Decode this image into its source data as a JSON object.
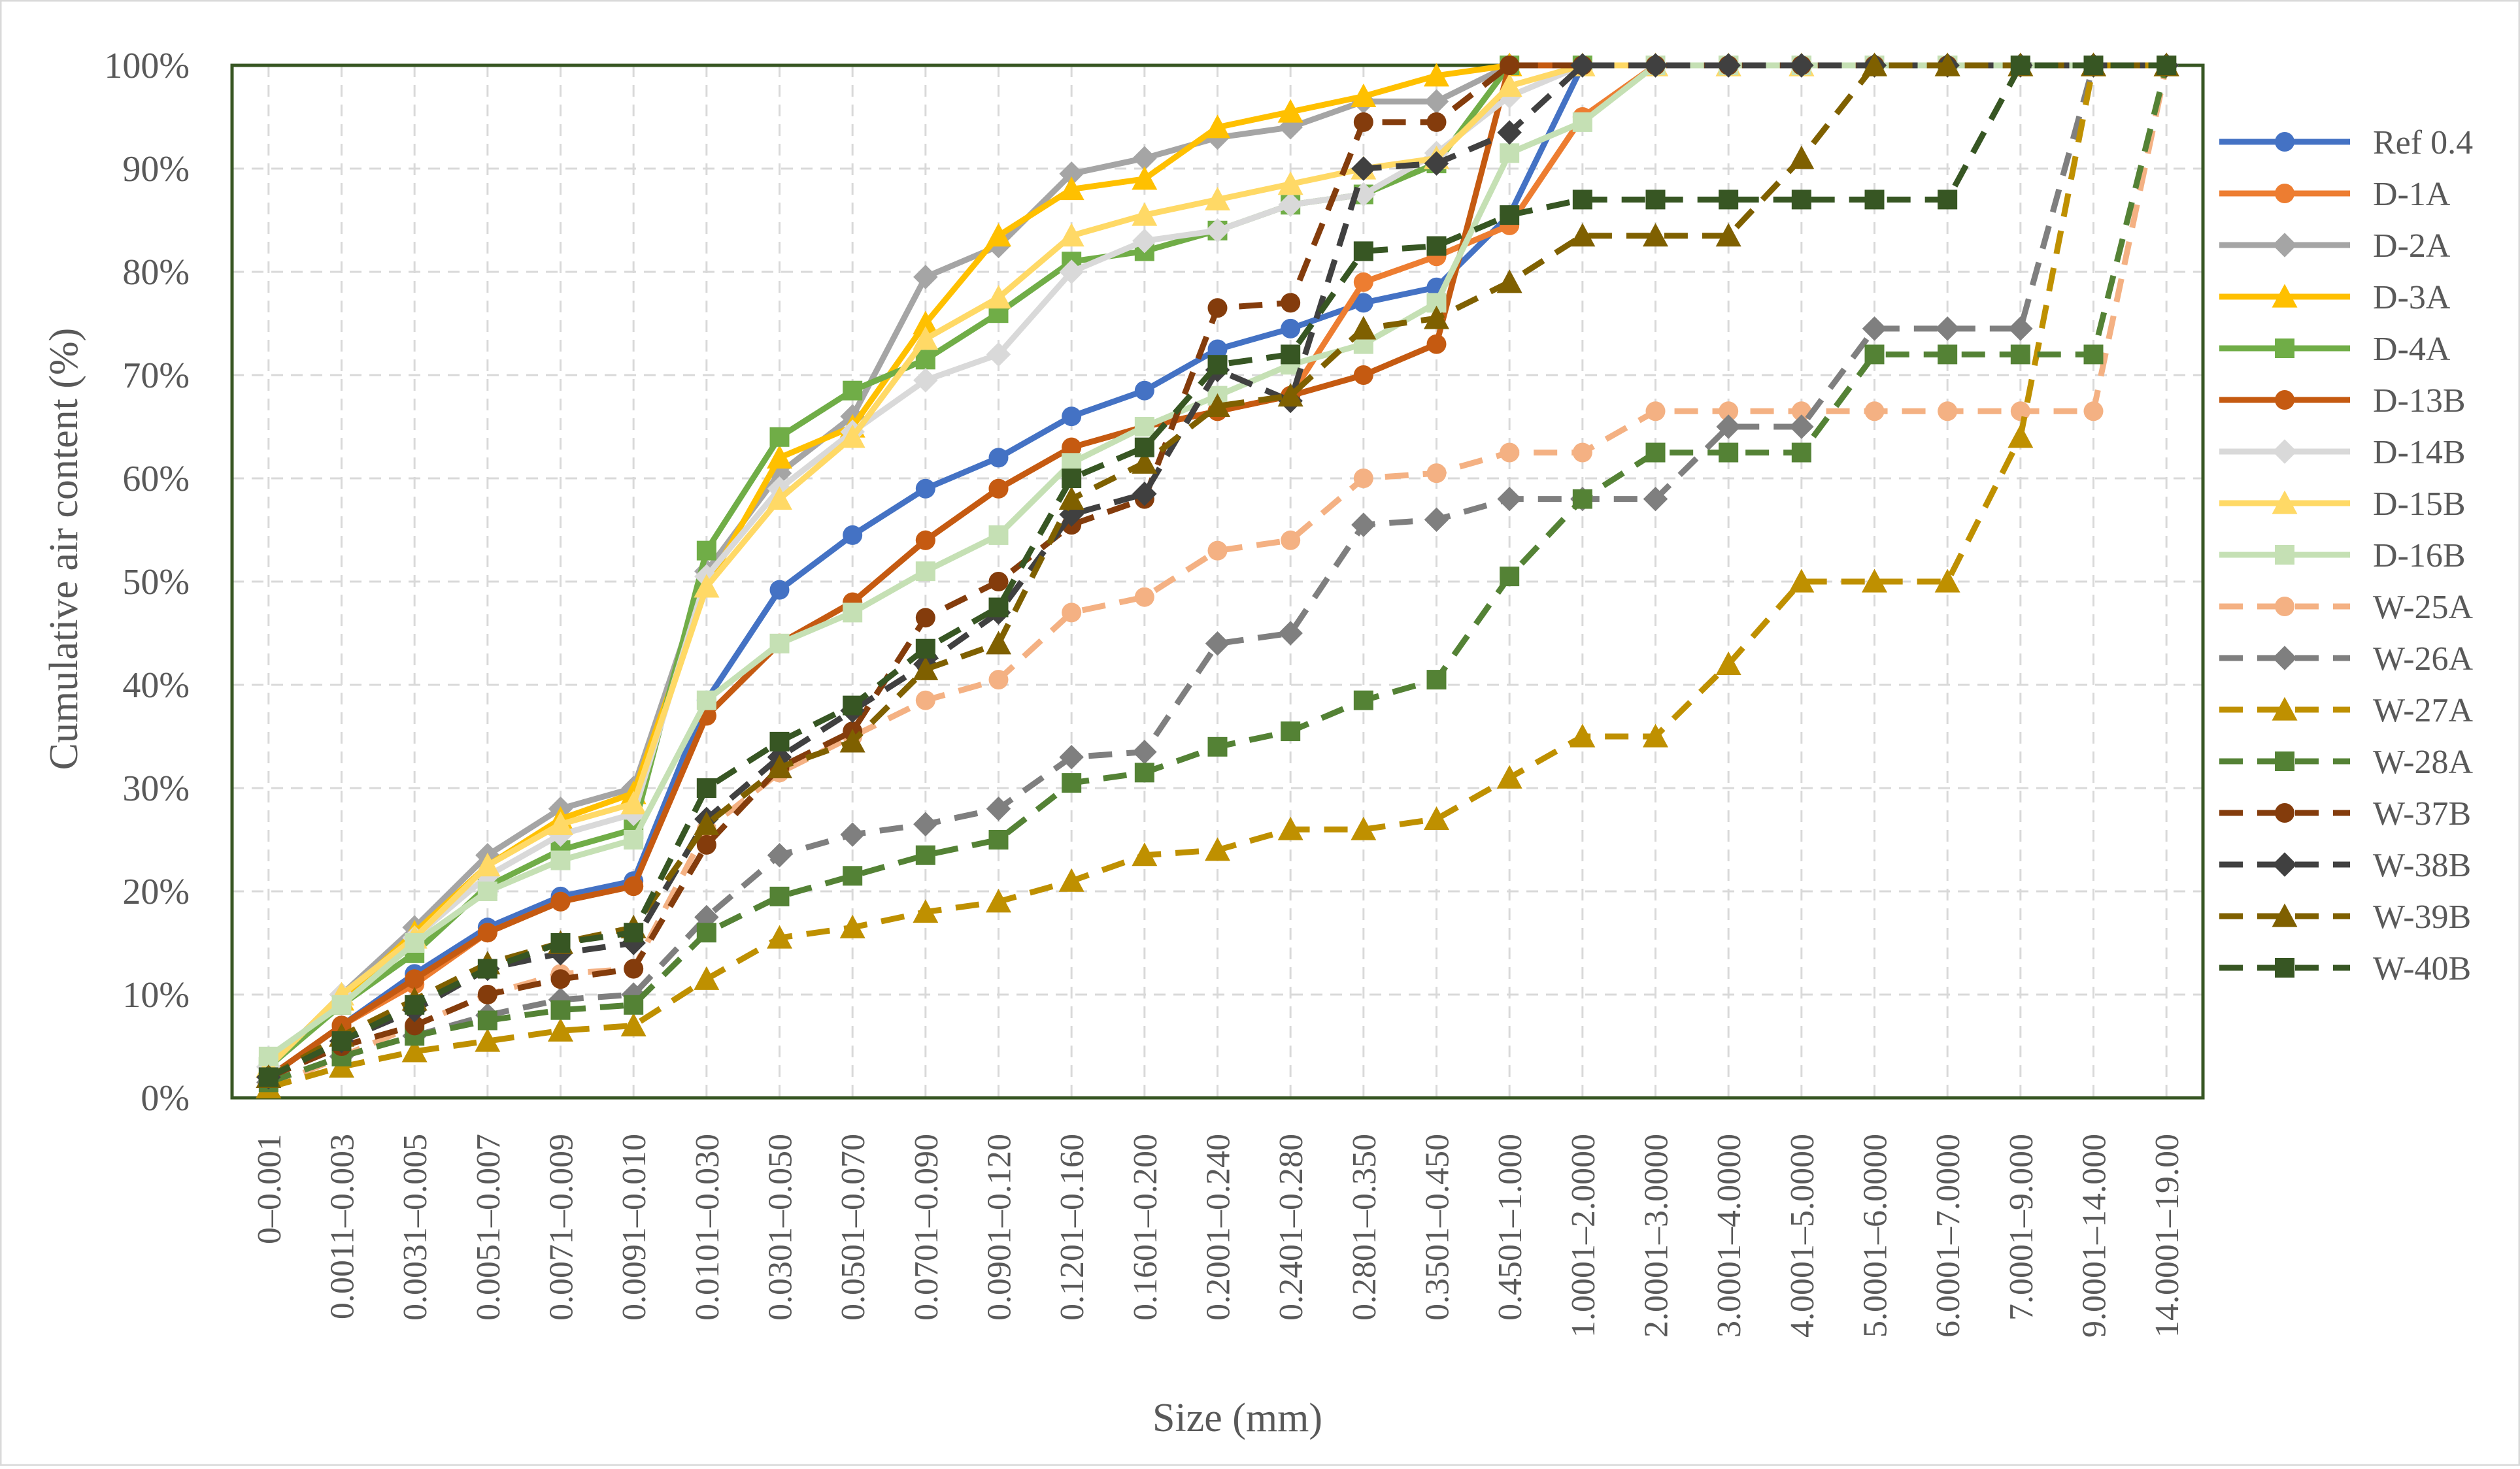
{
  "chart_data": {
    "type": "line",
    "title": "",
    "xlabel": "Size (mm)",
    "ylabel": "Cumulative air content (%)",
    "ylim": [
      0,
      100
    ],
    "y_ticks": [
      "0%",
      "10%",
      "20%",
      "30%",
      "40%",
      "50%",
      "60%",
      "70%",
      "80%",
      "90%",
      "100%"
    ],
    "grid": "dashed both axes",
    "legend_position": "right",
    "categories": [
      "0–0.001",
      "0.0011–0.003",
      "0.0031–0.005",
      "0.0051–0.007",
      "0.0071–0.009",
      "0.0091–0.010",
      "0.0101–0.030",
      "0.0301–0.050",
      "0.0501–0.070",
      "0.0701–0.090",
      "0.0901–0.120",
      "0.1201–0.160",
      "0.1601–0.200",
      "0.2001–0.240",
      "0.2401–0.280",
      "0.2801–0.350",
      "0.3501–0.450",
      "0.4501–1.000",
      "1.0001–2.0000",
      "2.0001–3.0000",
      "3.0001–4.0000",
      "4.0001–5.0000",
      "5.0001–6.0000",
      "6.0001–7.0000",
      "7.0001–9.000",
      "9.0001–14.000",
      "14.0001–19.00"
    ],
    "series": [
      {
        "name": "Ref 0.4",
        "color": "#4472C4",
        "dash": false,
        "marker": "circle",
        "values": [
          2,
          7,
          12,
          16.5,
          19.5,
          21,
          38.5,
          49.2,
          54.5,
          59,
          62,
          66,
          68.5,
          72.5,
          74.5,
          77,
          78.5,
          85.5,
          100,
          100,
          100,
          100,
          100,
          100,
          100,
          100,
          100
        ]
      },
      {
        "name": "D-1A",
        "color": "#ED7D31",
        "dash": false,
        "marker": "circle",
        "values": [
          2,
          7,
          11,
          16,
          19,
          20.5,
          37,
          44,
          48,
          54,
          59,
          63,
          65,
          66.5,
          68,
          79,
          81.5,
          84.5,
          95,
          100,
          100,
          100,
          100,
          100,
          100,
          100,
          100
        ]
      },
      {
        "name": "D-2A",
        "color": "#A5A5A5",
        "dash": false,
        "marker": "diamond",
        "values": [
          3,
          10,
          16.5,
          23.5,
          28,
          30,
          51,
          60.5,
          66,
          79.5,
          82.5,
          89.5,
          91,
          93,
          94,
          96.5,
          96.5,
          100,
          100,
          100,
          100,
          100,
          100,
          100,
          100,
          100,
          100
        ]
      },
      {
        "name": "D-3A",
        "color": "#FFC000",
        "dash": false,
        "marker": "triangle",
        "values": [
          3,
          9.5,
          16,
          22.5,
          27,
          29.5,
          49.5,
          62,
          65,
          75,
          83.5,
          88,
          89,
          94,
          95.5,
          97,
          99,
          100,
          100,
          100,
          100,
          100,
          100,
          100,
          100,
          100,
          100
        ]
      },
      {
        "name": "D-4A",
        "color": "#70AD47",
        "dash": false,
        "marker": "square",
        "values": [
          3,
          9,
          14,
          20.5,
          24,
          26,
          53,
          64,
          68.5,
          71.5,
          76,
          81,
          82,
          84,
          86.5,
          87.5,
          90.5,
          100,
          100,
          100,
          100,
          100,
          100,
          100,
          100,
          100,
          100
        ]
      },
      {
        "name": "D-13B",
        "color": "#C55A11",
        "dash": false,
        "marker": "circle",
        "values": [
          2,
          7,
          11.5,
          16,
          19,
          20.5,
          37,
          44,
          48,
          54,
          59,
          63,
          65,
          66.5,
          68,
          70,
          73,
          100,
          100,
          100,
          100,
          100,
          100,
          100,
          100,
          100,
          100
        ]
      },
      {
        "name": "D-14B",
        "color": "#D9D9D9",
        "dash": false,
        "marker": "diamond",
        "values": [
          3,
          10,
          15.5,
          21.5,
          25.5,
          27.5,
          50.5,
          59,
          64.5,
          69.5,
          72,
          80,
          83,
          84,
          86.5,
          87.5,
          91.5,
          97,
          100,
          100,
          100,
          100,
          100,
          100,
          100,
          100,
          100
        ]
      },
      {
        "name": "D-15B",
        "color": "#FFD966",
        "dash": false,
        "marker": "triangle",
        "values": [
          3,
          10,
          15.5,
          22.5,
          26.5,
          28.5,
          49.5,
          58,
          64,
          73.5,
          77.5,
          83.5,
          85.5,
          87,
          88.5,
          90,
          91,
          98,
          100,
          100,
          100,
          100,
          100,
          100,
          100,
          100,
          100
        ]
      },
      {
        "name": "D-16B",
        "color": "#C5E0B4",
        "dash": false,
        "marker": "square",
        "values": [
          4,
          9,
          15,
          20,
          23,
          25,
          38.5,
          44,
          47,
          51,
          54.5,
          61.5,
          65,
          68,
          71,
          73,
          77,
          91.5,
          94.5,
          100,
          100,
          100,
          100,
          100,
          100,
          100,
          100
        ]
      },
      {
        "name": "W-25A",
        "color": "#F4B183",
        "dash": true,
        "marker": "circle",
        "values": [
          1,
          4,
          7,
          10,
          12,
          12.5,
          26,
          31.5,
          35,
          38.5,
          40.5,
          47,
          48.5,
          53,
          54,
          60,
          60.5,
          62.5,
          62.5,
          66.5,
          66.5,
          66.5,
          66.5,
          66.5,
          66.5,
          66.5,
          100
        ]
      },
      {
        "name": "W-26A",
        "color": "#7F7F7F",
        "dash": true,
        "marker": "diamond",
        "values": [
          1.5,
          4,
          6,
          8,
          9.5,
          10,
          17.5,
          23.5,
          25.5,
          26.5,
          28,
          33,
          33.5,
          44,
          45,
          55.5,
          56,
          58,
          58,
          58,
          65,
          65,
          74.5,
          74.5,
          74.5,
          100,
          100
        ]
      },
      {
        "name": "W-27A",
        "color": "#BF9000",
        "dash": true,
        "marker": "triangle",
        "values": [
          1,
          3,
          4.5,
          5.5,
          6.5,
          7,
          11.5,
          15.5,
          16.5,
          18,
          19,
          21,
          23.5,
          24,
          26,
          26,
          27,
          31,
          35,
          35,
          42,
          50,
          50,
          50,
          64,
          100,
          100
        ]
      },
      {
        "name": "W-28A",
        "color": "#548235",
        "dash": true,
        "marker": "square",
        "values": [
          1.5,
          4,
          6,
          7.5,
          8.5,
          9,
          16,
          19.5,
          21.5,
          23.5,
          25,
          30.5,
          31.5,
          34,
          35.5,
          38.5,
          40.5,
          50.5,
          58,
          62.5,
          62.5,
          62.5,
          72,
          72,
          72,
          72,
          100
        ]
      },
      {
        "name": "W-37B",
        "color": "#843C0C",
        "dash": true,
        "marker": "circle",
        "values": [
          2,
          5,
          7,
          10,
          11.5,
          12.5,
          24.5,
          32,
          35.5,
          46.5,
          50,
          55.5,
          58,
          76.5,
          77,
          94.5,
          94.5,
          100,
          100,
          100,
          100,
          100,
          100,
          100,
          100,
          100,
          100
        ]
      },
      {
        "name": "W-38B",
        "color": "#404040",
        "dash": true,
        "marker": "diamond",
        "values": [
          2,
          5.5,
          8.5,
          12.5,
          14,
          15,
          27,
          33,
          37.5,
          42,
          47,
          56.5,
          58.5,
          70.5,
          67.5,
          90,
          90.5,
          93.5,
          100,
          100,
          100,
          100,
          100,
          100,
          100,
          100,
          100
        ]
      },
      {
        "name": "W-39B",
        "color": "#7F6000",
        "dash": true,
        "marker": "triangle",
        "values": [
          2,
          6,
          9.5,
          13,
          15,
          16.5,
          26.5,
          32,
          34.5,
          41.5,
          44,
          58,
          61.5,
          67,
          68,
          74.5,
          75.5,
          79,
          83.5,
          83.5,
          83.5,
          91,
          100,
          100,
          100,
          100,
          100
        ]
      },
      {
        "name": "W-40B",
        "color": "#375623",
        "dash": true,
        "marker": "square",
        "values": [
          2,
          5.5,
          9,
          12.5,
          15,
          16,
          30,
          34.5,
          38,
          43.5,
          47.5,
          60,
          63,
          71,
          72,
          82,
          82.5,
          85.5,
          87,
          87,
          87,
          87,
          87,
          87,
          100,
          100,
          100
        ]
      }
    ]
  }
}
